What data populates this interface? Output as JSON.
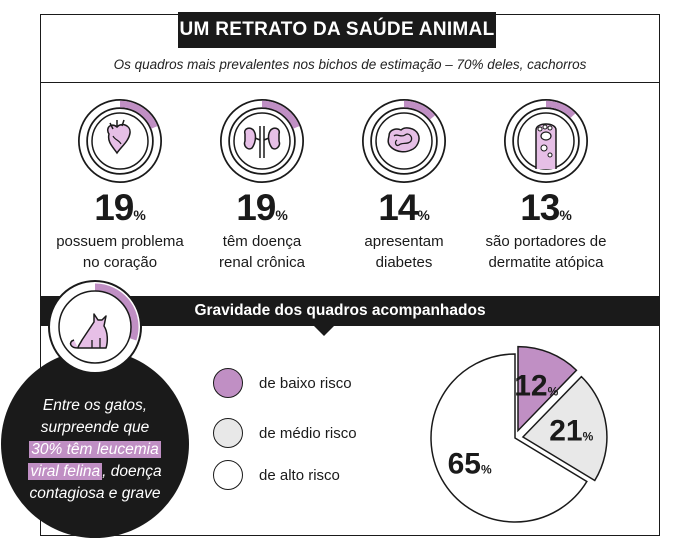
{
  "header": {
    "title": "UM RETRATO DA SAÚDE ANIMAL",
    "subtitle": "Os quadros mais prevalentes nos bichos de estimação – 70% deles, cachorros"
  },
  "stats": [
    {
      "value": 19,
      "unit": "%",
      "line1": "possuem problema",
      "line2": "no coração",
      "icon": "heart-icon"
    },
    {
      "value": 19,
      "unit": "%",
      "line1": "têm doença",
      "line2": "renal crônica",
      "icon": "kidneys-icon"
    },
    {
      "value": 14,
      "unit": "%",
      "line1": "apresentam",
      "line2": "diabetes",
      "icon": "intestine-icon"
    },
    {
      "value": 13,
      "unit": "%",
      "line1": "são portadores de",
      "line2": "dermatite atópica",
      "icon": "paw-icon"
    }
  ],
  "severity": {
    "title": "Gravidade dos quadros acompanhados"
  },
  "cats": {
    "icon": "cat-icon",
    "ring_fraction": 0.3,
    "line1": "Entre os gatos,",
    "line2": "surpreende que",
    "highlight1": "30% têm leucemia",
    "highlight2": "viral felina",
    "rest2": ", doença",
    "line4": "contagiosa e grave"
  },
  "colors": {
    "accent": "#c08fc4",
    "light_gray": "#e8e8e8",
    "dark": "#1a1a1a",
    "ring_bg": "#ffffff"
  },
  "chart_data": {
    "type": "pie",
    "unit": "%",
    "categories": [
      "de baixo risco",
      "de médio risco",
      "de alto risco"
    ],
    "values": [
      12,
      21,
      65
    ],
    "colors": [
      "#c08fc4",
      "#e8e8e8",
      "#ffffff"
    ]
  }
}
